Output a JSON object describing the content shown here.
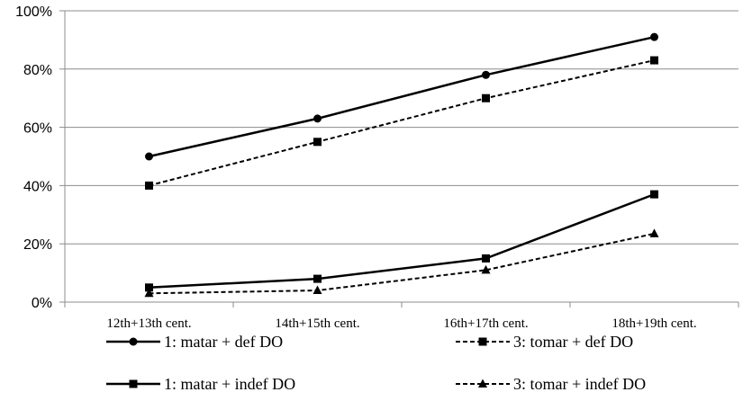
{
  "chart_data": {
    "type": "line",
    "title": "",
    "xlabel": "",
    "ylabel": "",
    "categories": [
      "12th+13th cent.",
      "14th+15th cent.",
      "16th+17th cent.",
      "18th+19th cent."
    ],
    "ylim": [
      0,
      100
    ],
    "y_ticks": [
      0,
      20,
      40,
      60,
      80,
      100
    ],
    "y_tick_labels": [
      "0%",
      "20%",
      "40%",
      "60%",
      "80%",
      "100%"
    ],
    "grid": true,
    "legend_position": "bottom",
    "series": [
      {
        "name": "1: matar + def DO",
        "values": [
          50,
          63,
          78,
          91
        ],
        "line": "solid",
        "marker": "circle",
        "color": "#000000"
      },
      {
        "name": "3: tomar + def DO",
        "values": [
          40,
          55,
          70,
          83
        ],
        "line": "dashed",
        "marker": "square",
        "color": "#000000"
      },
      {
        "name": "1: matar + indef DO",
        "values": [
          5,
          8,
          15,
          37
        ],
        "line": "solid",
        "marker": "square",
        "color": "#000000"
      },
      {
        "name": "3: tomar + indef DO",
        "values": [
          3,
          4,
          11,
          23.5
        ],
        "line": "dashed",
        "marker": "triangle",
        "color": "#000000"
      }
    ]
  }
}
